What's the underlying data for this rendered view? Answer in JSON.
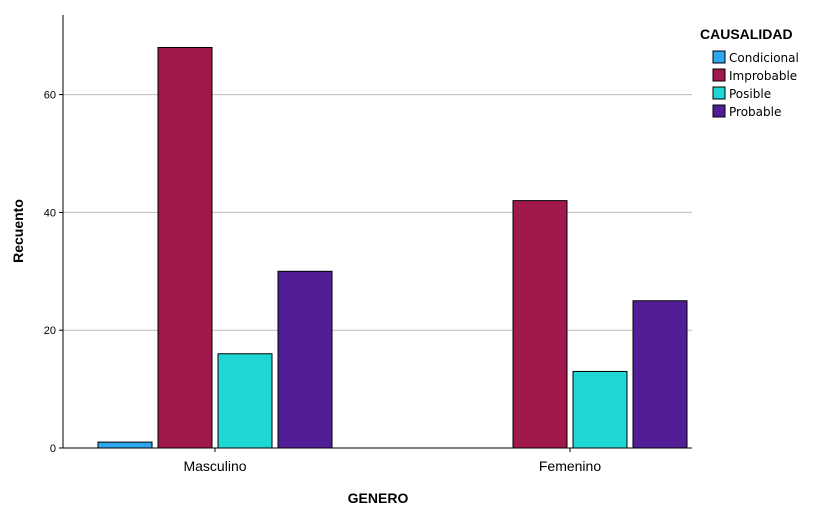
{
  "chart_data": {
    "type": "bar",
    "categories": [
      "Masculino",
      "Femenino"
    ],
    "series": [
      {
        "name": "Condicional",
        "values": [
          1,
          0
        ],
        "color": "#2EA7F0"
      },
      {
        "name": "Improbable",
        "values": [
          68,
          42
        ],
        "color": "#A0184C"
      },
      {
        "name": "Posible",
        "values": [
          16,
          13
        ],
        "color": "#1ED6D3"
      },
      {
        "name": "Probable",
        "values": [
          30,
          25
        ],
        "color": "#521E96"
      }
    ],
    "xlabel": "GENERO",
    "ylabel": "Recuento",
    "ylim": [
      0,
      72
    ],
    "yticks": [
      0,
      20,
      40,
      60
    ],
    "grid": true,
    "legend": {
      "title": "CAUSALIDAD",
      "position": "top-right"
    }
  }
}
